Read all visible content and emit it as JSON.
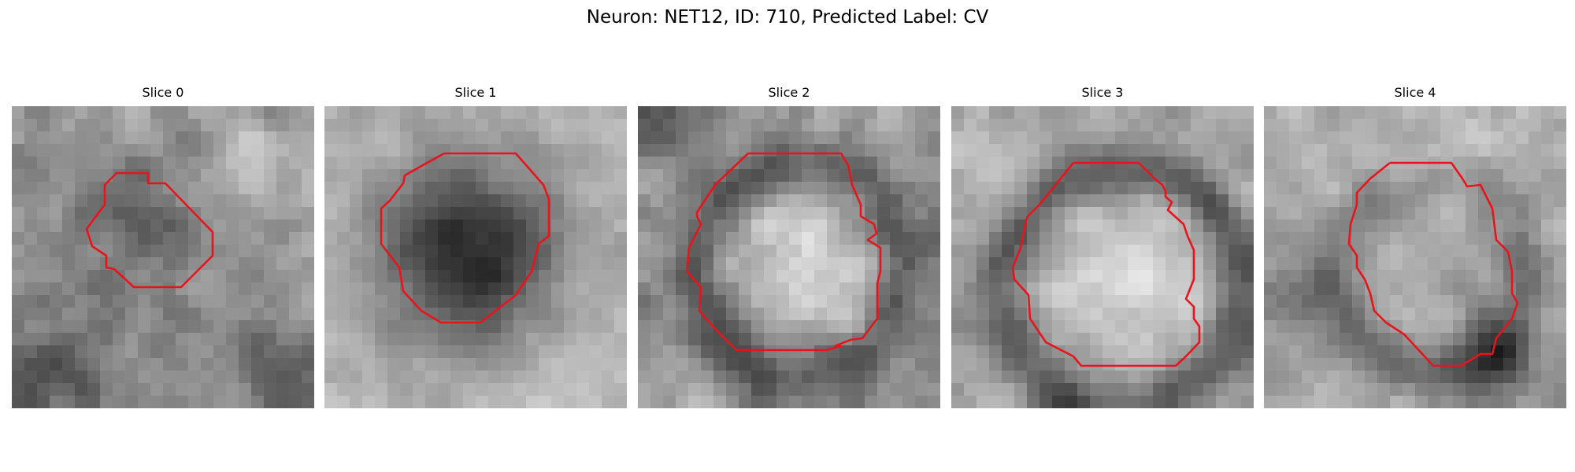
{
  "figure": {
    "title": "Neuron: NET12, ID: 710, Predicted Label: CV"
  },
  "slices": [
    {
      "title": "Slice 0"
    },
    {
      "title": "Slice 1"
    },
    {
      "title": "Slice 2"
    },
    {
      "title": "Slice 3"
    },
    {
      "title": "Slice 4"
    }
  ],
  "colors": {
    "contour": "#e8141c",
    "colormap": "gray"
  }
}
